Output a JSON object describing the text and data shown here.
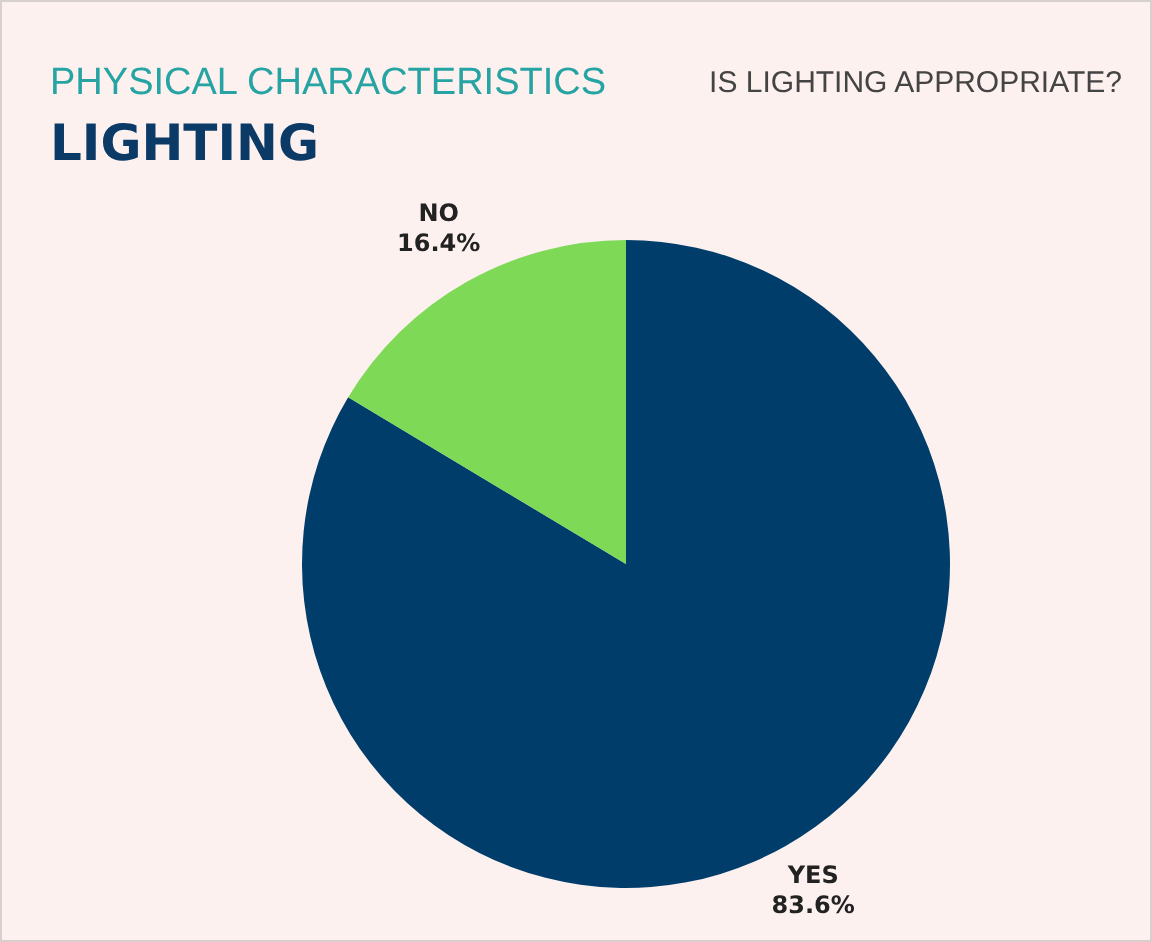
{
  "chart_data": {
    "type": "pie",
    "title": "LIGHTING",
    "subtitle": "PHYSICAL CHARACTERISTICS",
    "annotations": [
      "IS LIGHTING APPROPRIATE?"
    ],
    "categories": [
      "YES",
      "NO"
    ],
    "values": [
      83.6,
      16.4
    ],
    "colors": [
      "#003d6b",
      "#7ed957"
    ],
    "value_labels": [
      "83.6%",
      "16.4%"
    ],
    "legend": false
  }
}
